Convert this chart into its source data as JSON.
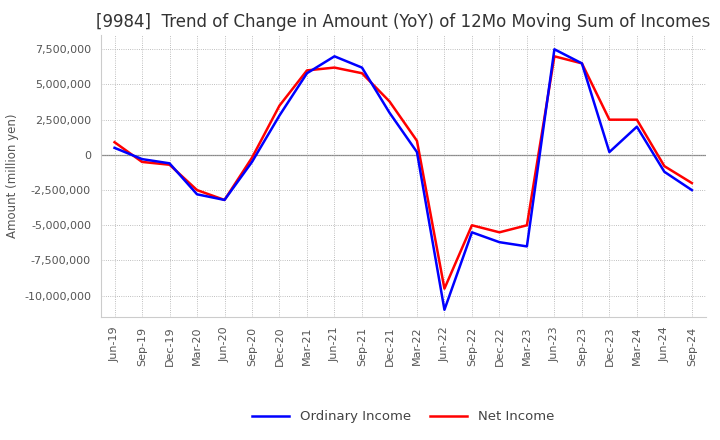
{
  "title": "[9984]  Trend of Change in Amount (YoY) of 12Mo Moving Sum of Incomes",
  "ylabel": "Amount (million yen)",
  "ylim": [
    -11500000,
    8500000
  ],
  "yticks": [
    -10000000,
    -7500000,
    -5000000,
    -2500000,
    0,
    2500000,
    5000000,
    7500000
  ],
  "legend_labels": [
    "Ordinary Income",
    "Net Income"
  ],
  "line_colors": [
    "blue",
    "red"
  ],
  "dates": [
    "Jun-19",
    "Sep-19",
    "Dec-19",
    "Mar-20",
    "Jun-20",
    "Sep-20",
    "Dec-20",
    "Mar-21",
    "Jun-21",
    "Sep-21",
    "Dec-21",
    "Mar-22",
    "Jun-22",
    "Sep-22",
    "Dec-22",
    "Mar-23",
    "Jun-23",
    "Sep-23",
    "Dec-23",
    "Mar-24",
    "Jun-24",
    "Sep-24"
  ],
  "ordinary_income": [
    500000,
    -300000,
    -600000,
    -2800000,
    -3200000,
    -500000,
    2800000,
    5800000,
    7000000,
    6200000,
    3000000,
    200000,
    -11000000,
    -5500000,
    -6200000,
    -6500000,
    7500000,
    6500000,
    200000,
    2000000,
    -1200000,
    -2500000
  ],
  "net_income": [
    900000,
    -500000,
    -700000,
    -2500000,
    -3200000,
    -200000,
    3500000,
    6000000,
    6200000,
    5800000,
    3800000,
    1000000,
    -9500000,
    -5000000,
    -5500000,
    -5000000,
    7000000,
    6500000,
    2500000,
    2500000,
    -800000,
    -2000000
  ],
  "background_color": "#ffffff",
  "grid_color": "#aaaaaa",
  "title_fontsize": 12,
  "axis_fontsize": 8.5,
  "tick_fontsize": 8
}
